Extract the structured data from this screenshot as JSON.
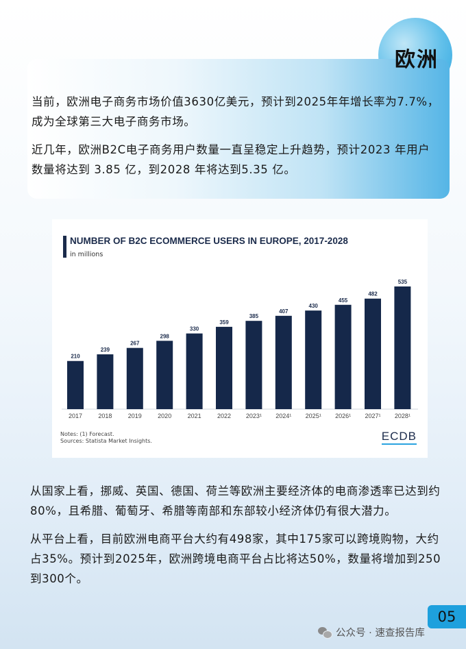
{
  "section": {
    "title": "欧洲"
  },
  "intro": {
    "p1": "当前，欧洲电子商务市场价值3630亿美元，预计到2025年年增长率为7.7%，成为全球第三大电子商务市场。",
    "p2": "近几年，欧洲B2C电子商务用户数量一直呈稳定上升趋势，预计2023 年用户数量将达到 3.85 亿，到2028 年将达到5.35 亿。"
  },
  "chart_data": {
    "type": "bar",
    "title": "NUMBER OF B2C ECOMMERCE USERS IN EUROPE, 2017-2028",
    "subtitle": "in millions",
    "categories": [
      "2017",
      "2018",
      "2019",
      "2020",
      "2021",
      "2022",
      "2023¹",
      "2024¹",
      "2025¹",
      "2026¹",
      "2027¹",
      "2028¹"
    ],
    "values": [
      210,
      239,
      267,
      298,
      330,
      359,
      385,
      407,
      430,
      455,
      482,
      535
    ],
    "ylim": [
      0,
      535
    ],
    "bar_color": "#15284a",
    "grid": false,
    "notes": [
      "Notes: (1) Forecast.",
      "Sources: Statista Market Insights."
    ],
    "logo": "ECDB"
  },
  "body": {
    "p3": "从国家上看，挪威、英国、德国、荷兰等欧洲主要经济体的电商渗透率已达到约80%，且希腊、葡萄牙、希腊等南部和东部较小经济体仍有很大潜力。",
    "p4": "从平台上看，目前欧洲电商平台大约有498家，其中175家可以跨境购物，大约占35%。预计到2025年，欧洲跨境电商平台占比将达50%，数量将增加到250到300个。"
  },
  "footer": {
    "page_number": "05",
    "credit": "公众号 · 速查报告库",
    "credit_icon": "wechat-icon"
  },
  "colors": {
    "accent": "#1ea0dd",
    "navy": "#15284a"
  }
}
